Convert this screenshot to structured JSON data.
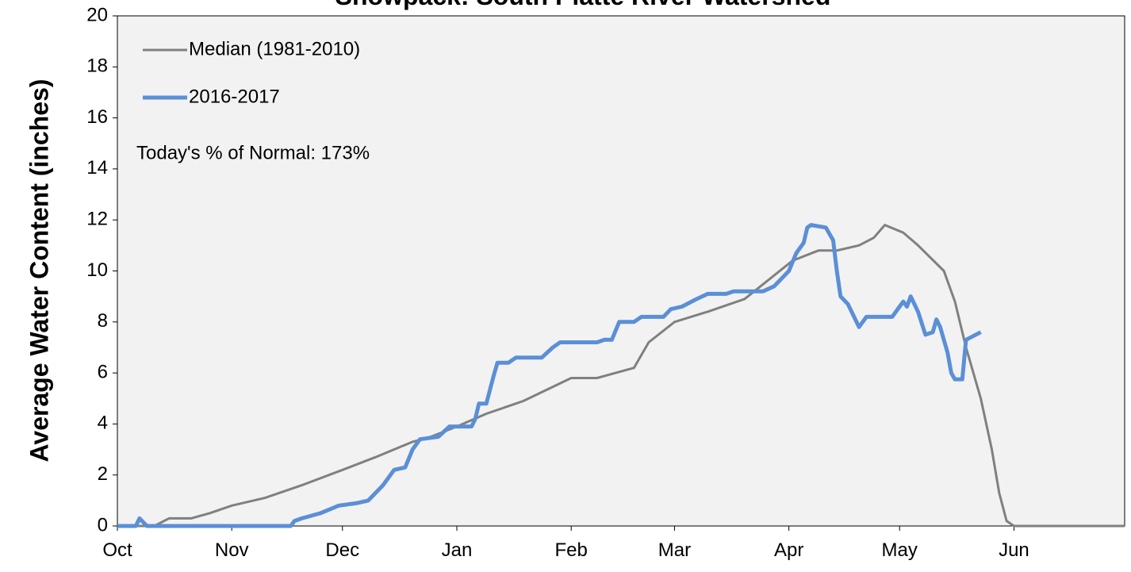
{
  "chart_data": {
    "type": "line",
    "title": "Snowpack: South Platte River Watershed",
    "ylabel": "Average Water Content (inches)",
    "annotation": "Today's % of Normal: 173%",
    "xlim": [
      0,
      273
    ],
    "xticks": [
      {
        "value": 0,
        "label": "Oct"
      },
      {
        "value": 31,
        "label": "Nov"
      },
      {
        "value": 61,
        "label": "Dec"
      },
      {
        "value": 92,
        "label": "Jan"
      },
      {
        "value": 123,
        "label": "Feb"
      },
      {
        "value": 151,
        "label": "Mar"
      },
      {
        "value": 182,
        "label": "Apr"
      },
      {
        "value": 212,
        "label": "May"
      },
      {
        "value": 243,
        "label": "Jun"
      }
    ],
    "ylim": [
      0,
      20
    ],
    "yticks": [
      0,
      2,
      4,
      6,
      8,
      10,
      12,
      14,
      16,
      18,
      20
    ],
    "legend": "top-left",
    "series": [
      {
        "name": "Median (1981-2010)",
        "color": "#808080",
        "x": [
          0,
          10,
          14,
          20,
          25,
          31,
          40,
          50,
          61,
          70,
          80,
          85,
          92,
          100,
          110,
          123,
          130,
          140,
          144,
          151,
          160,
          170,
          183,
          190,
          195,
          201,
          205,
          208,
          213,
          217,
          224,
          227,
          230,
          234,
          237,
          239,
          241,
          243,
          273
        ],
        "values": [
          0,
          0,
          0.3,
          0.3,
          0.5,
          0.8,
          1.1,
          1.6,
          2.2,
          2.7,
          3.3,
          3.5,
          3.9,
          4.4,
          4.9,
          5.8,
          5.8,
          6.2,
          7.2,
          8.0,
          8.4,
          8.9,
          10.4,
          10.8,
          10.8,
          11.0,
          11.3,
          11.8,
          11.5,
          11.0,
          10.0,
          8.8,
          7.0,
          5.0,
          3.0,
          1.3,
          0.2,
          0,
          0
        ]
      },
      {
        "name": "2016-2017",
        "color": "#5b8fd6",
        "x": [
          0,
          5,
          6,
          8,
          47,
          48,
          50,
          55,
          60,
          65,
          68,
          72,
          75,
          78,
          80,
          82,
          87,
          90,
          96,
          97,
          98,
          100,
          102,
          103,
          106,
          108,
          115,
          118,
          120,
          130,
          132,
          134,
          136,
          140,
          142,
          148,
          150,
          153,
          157,
          160,
          165,
          167,
          175,
          178,
          182,
          184,
          186,
          187,
          188,
          192,
          194,
          195,
          196,
          198,
          200,
          201,
          203,
          210,
          212,
          213,
          214,
          215,
          217,
          219,
          221,
          222,
          223,
          225,
          226,
          227,
          229,
          230,
          234
        ],
        "values": [
          0,
          0,
          0.3,
          0,
          0,
          0.2,
          0.3,
          0.5,
          0.8,
          0.9,
          1.0,
          1.6,
          2.2,
          2.3,
          3.0,
          3.4,
          3.5,
          3.9,
          3.9,
          4.2,
          4.8,
          4.8,
          5.9,
          6.4,
          6.4,
          6.6,
          6.6,
          7.0,
          7.2,
          7.2,
          7.3,
          7.3,
          8.0,
          8.0,
          8.2,
          8.2,
          8.5,
          8.6,
          8.9,
          9.1,
          9.1,
          9.2,
          9.2,
          9.4,
          10.0,
          10.7,
          11.1,
          11.7,
          11.8,
          11.7,
          11.2,
          10.0,
          9.0,
          8.7,
          8.1,
          7.8,
          8.2,
          8.2,
          8.6,
          8.8,
          8.6,
          9.0,
          8.4,
          7.5,
          7.6,
          8.1,
          7.8,
          6.8,
          6.0,
          5.75,
          5.75,
          7.3,
          7.6
        ]
      }
    ]
  }
}
